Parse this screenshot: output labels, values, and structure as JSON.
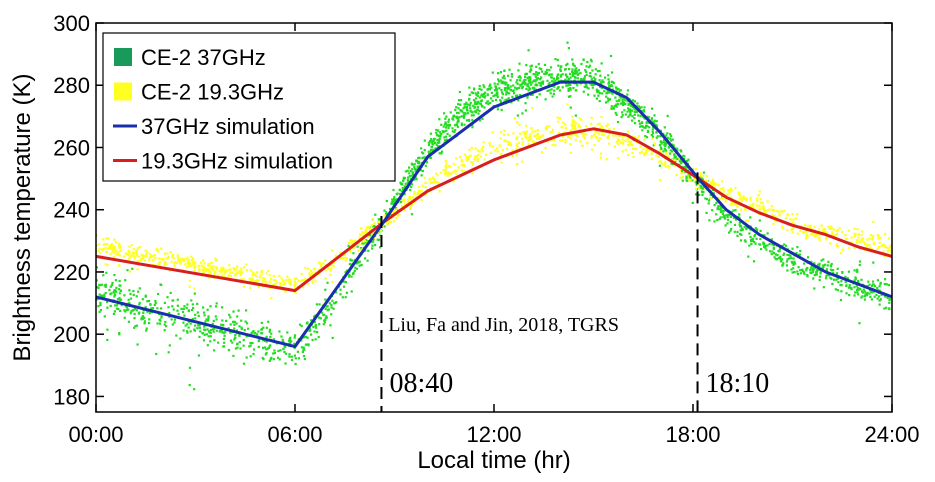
{
  "chart_data": {
    "type": "line",
    "xlabel": "Local time (hr)",
    "ylabel": "Brightness temperature (K)",
    "xlim": [
      0,
      24
    ],
    "ylim": [
      175,
      300
    ],
    "x_ticks": [
      0,
      6,
      12,
      18,
      24
    ],
    "x_tick_labels": [
      "00:00",
      "06:00",
      "12:00",
      "18:00",
      "24:00"
    ],
    "y_ticks": [
      180,
      200,
      220,
      240,
      260,
      280,
      300
    ],
    "y_tick_labels": [
      "180",
      "200",
      "220",
      "240",
      "260",
      "280",
      "300"
    ],
    "grid": false,
    "legend_position": "top-left",
    "series": [
      {
        "name": "CE-2 37GHz",
        "kind": "scatter",
        "color": "#22dd22",
        "legend_color": "#1a9a5a",
        "x": [
          0,
          1,
          2,
          3,
          4,
          5,
          6,
          7,
          8,
          8.667,
          9,
          10,
          11,
          12,
          13,
          14,
          15,
          16,
          17,
          18,
          18.167,
          19,
          20,
          21,
          22,
          23,
          24
        ],
        "y": [
          214,
          209,
          206,
          203,
          201,
          198,
          196,
          208,
          226,
          236,
          243,
          259,
          271,
          278,
          281,
          283,
          282,
          274,
          264,
          251,
          249,
          238,
          230,
          224,
          220,
          215,
          212
        ],
        "spread": [
          10,
          12,
          14,
          14,
          12,
          12,
          10,
          9,
          9,
          8,
          8,
          9,
          10,
          10,
          11,
          11,
          10,
          9,
          8,
          8,
          8,
          8,
          8,
          8,
          8,
          8,
          8
        ]
      },
      {
        "name": "CE-2 19.3GHz",
        "kind": "scatter",
        "color": "#ffff22",
        "legend_color": "#ffff22",
        "x": [
          0,
          1,
          2,
          3,
          4,
          5,
          6,
          7,
          8,
          8.667,
          9,
          10,
          11,
          12,
          13,
          14,
          15,
          16,
          17,
          18,
          18.167,
          19,
          20,
          21,
          22,
          23,
          24
        ],
        "y": [
          228,
          226,
          224,
          222,
          220,
          218,
          216,
          222,
          231,
          236,
          239,
          248,
          255,
          260,
          263,
          266,
          265,
          262,
          257,
          251,
          250,
          245,
          241,
          236,
          232,
          230,
          228
        ],
        "spread": [
          5,
          5,
          5,
          5,
          5,
          5,
          5,
          5,
          5,
          5,
          5,
          6,
          7,
          8,
          8,
          8,
          8,
          7,
          6,
          6,
          6,
          6,
          6,
          6,
          6,
          6,
          6
        ]
      },
      {
        "name": "37GHz simulation",
        "kind": "line",
        "color": "#1b2fae",
        "x": [
          0,
          6,
          8.667,
          10,
          12,
          14,
          15,
          16,
          17,
          18.167,
          19,
          20,
          21,
          22,
          23,
          24
        ],
        "y": [
          212,
          196,
          236,
          257,
          273,
          281,
          281,
          276,
          265,
          250,
          240,
          232,
          226,
          220,
          216,
          212
        ]
      },
      {
        "name": "19.3GHz simulation",
        "kind": "line",
        "color": "#d81e1e",
        "x": [
          0,
          6,
          8.667,
          10,
          12,
          14,
          15,
          16,
          17,
          18.167,
          19,
          20,
          21,
          22,
          23,
          24
        ],
        "y": [
          225,
          214,
          236,
          246,
          256,
          264,
          266,
          264,
          258,
          250,
          244,
          239,
          235,
          232,
          228,
          225
        ]
      }
    ],
    "vlines": [
      {
        "x": 8.667,
        "label": "08:40"
      },
      {
        "x": 18.167,
        "label": "18:10"
      }
    ],
    "annotations": [
      {
        "text": "Liu, Fa and Jin, 2018, TGRS",
        "x": 8.75,
        "y": 201
      }
    ]
  }
}
